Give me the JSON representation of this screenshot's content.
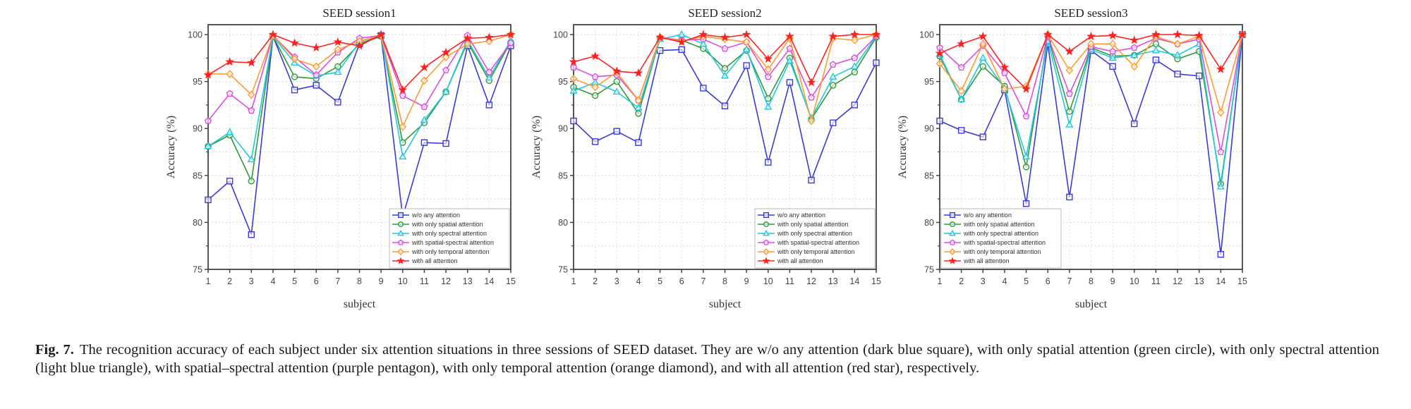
{
  "figure": {
    "label": "Fig. 7.",
    "caption": "The recognition accuracy of each subject under six attention situations in three sessions of SEED dataset. They are w/o any attention (dark blue square), with only spatial attention (green circle), with only spectral attention (light blue triangle), with spatial–spectral attention (purple pentagon), with only temporal attention (orange diamond), and with all attention (red star), respectively."
  },
  "series_styles": [
    {
      "name": "w/o any attention",
      "color": "#3a3ad6",
      "marker": "square"
    },
    {
      "name": "with only spatial attention",
      "color": "#2e9a3a",
      "marker": "circle"
    },
    {
      "name": "with only spectral attention",
      "color": "#1fc8e0",
      "marker": "triangle"
    },
    {
      "name": "with spatial-spectral attention",
      "color": "#d94ee0",
      "marker": "pentagon"
    },
    {
      "name": "with only temporal attention",
      "color": "#ff9a2e",
      "marker": "diamond"
    },
    {
      "name": "with all attention",
      "color": "#ff2020",
      "marker": "star"
    }
  ],
  "chart_data": [
    {
      "type": "line",
      "title": "SEED session1",
      "xlabel": "subject",
      "ylabel": "Accuracy (%)",
      "x": [
        1,
        2,
        3,
        4,
        5,
        6,
        7,
        8,
        9,
        10,
        11,
        12,
        13,
        14,
        15
      ],
      "xticks": [
        "1",
        "2",
        "3",
        "4",
        "5",
        "6",
        "7",
        "8",
        "9",
        "10",
        "11",
        "12",
        "13",
        "14",
        "15"
      ],
      "ylim": [
        75,
        100
      ],
      "yticks": [
        "75",
        "80",
        "85",
        "90",
        "95",
        "100"
      ],
      "grid": true,
      "legend_position": "bottom-right",
      "series": [
        {
          "name": "w/o any attention",
          "values": [
            82.4,
            84.4,
            78.7,
            99.8,
            94.1,
            94.6,
            92.8,
            99.0,
            99.9,
            80.6,
            88.5,
            88.4,
            98.8,
            92.5,
            98.8
          ]
        },
        {
          "name": "with only spatial attention",
          "values": [
            88.1,
            89.3,
            84.4,
            99.8,
            95.5,
            95.3,
            96.6,
            99.0,
            99.8,
            88.5,
            90.6,
            93.9,
            99.2,
            95.1,
            99.2
          ]
        },
        {
          "name": "with only spectral attention",
          "values": [
            88.1,
            89.6,
            86.7,
            99.8,
            97.0,
            95.6,
            96.0,
            99.2,
            100.0,
            87.0,
            90.9,
            93.9,
            99.4,
            95.4,
            99.4
          ]
        },
        {
          "name": "with spatial-spectral attention",
          "values": [
            90.8,
            93.7,
            91.9,
            99.9,
            97.6,
            95.7,
            98.1,
            99.6,
            99.9,
            93.5,
            92.3,
            96.2,
            99.9,
            96.0,
            99.1
          ]
        },
        {
          "name": "with only temporal attention",
          "values": [
            95.8,
            95.8,
            93.6,
            99.9,
            97.4,
            96.6,
            98.4,
            99.3,
            99.9,
            90.2,
            95.1,
            97.6,
            99.0,
            99.3,
            100.0
          ]
        },
        {
          "name": "with all attention",
          "values": [
            95.7,
            97.1,
            97.0,
            100.0,
            99.1,
            98.6,
            99.2,
            98.8,
            100.0,
            94.1,
            96.5,
            98.1,
            99.6,
            99.7,
            100.0
          ]
        }
      ]
    },
    {
      "type": "line",
      "title": "SEED session2",
      "xlabel": "subject",
      "ylabel": "Accuracy (%)",
      "x": [
        1,
        2,
        3,
        4,
        5,
        6,
        7,
        8,
        9,
        10,
        11,
        12,
        13,
        14,
        15
      ],
      "xticks": [
        "1",
        "2",
        "3",
        "4",
        "5",
        "6",
        "7",
        "8",
        "9",
        "10",
        "11",
        "12",
        "13",
        "14",
        "15"
      ],
      "ylim": [
        75,
        100
      ],
      "yticks": [
        "75",
        "80",
        "85",
        "90",
        "95",
        "100"
      ],
      "grid": true,
      "legend_position": "bottom-right",
      "series": [
        {
          "name": "w/o any attention",
          "values": [
            90.8,
            88.6,
            89.7,
            88.5,
            98.3,
            98.4,
            94.3,
            92.4,
            96.7,
            86.4,
            94.9,
            84.5,
            90.6,
            92.5,
            97.0
          ]
        },
        {
          "name": "with only spatial attention",
          "values": [
            94.4,
            93.5,
            95.0,
            91.6,
            99.6,
            99.4,
            98.5,
            96.4,
            98.3,
            93.2,
            97.5,
            91.0,
            94.6,
            96.0,
            99.7
          ]
        },
        {
          "name": "with only spectral attention",
          "values": [
            94.0,
            94.9,
            93.9,
            92.2,
            99.5,
            100.0,
            99.0,
            95.6,
            98.4,
            92.3,
            97.2,
            91.1,
            95.5,
            96.6,
            99.8
          ]
        },
        {
          "name": "with spatial-spectral attention",
          "values": [
            96.5,
            95.5,
            95.7,
            93.0,
            99.7,
            99.4,
            99.5,
            98.5,
            99.2,
            95.5,
            98.5,
            93.3,
            96.8,
            97.5,
            99.8
          ]
        },
        {
          "name": "with only temporal attention",
          "values": [
            95.3,
            94.4,
            96.0,
            93.0,
            99.7,
            99.3,
            99.8,
            99.5,
            99.2,
            96.3,
            99.6,
            90.8,
            99.6,
            99.4,
            100.0
          ]
        },
        {
          "name": "with all attention",
          "values": [
            97.1,
            97.7,
            96.1,
            95.9,
            99.7,
            99.2,
            100.0,
            99.7,
            100.0,
            97.4,
            99.8,
            94.9,
            99.8,
            100.0,
            100.0
          ]
        }
      ]
    },
    {
      "type": "line",
      "title": "SEED session3",
      "xlabel": "subject",
      "ylabel": "Accuracy (%)",
      "x": [
        1,
        2,
        3,
        4,
        5,
        6,
        7,
        8,
        9,
        10,
        11,
        12,
        13,
        14,
        15
      ],
      "xticks": [
        "1",
        "2",
        "3",
        "4",
        "5",
        "6",
        "7",
        "8",
        "9",
        "10",
        "11",
        "12",
        "13",
        "14",
        "15"
      ],
      "ylim": [
        75,
        100
      ],
      "yticks": [
        "75",
        "80",
        "85",
        "90",
        "95",
        "100"
      ],
      "grid": true,
      "legend_position": "bottom-left",
      "series": [
        {
          "name": "w/o any attention",
          "values": [
            90.8,
            89.8,
            89.1,
            94.1,
            82.0,
            99.0,
            82.7,
            98.3,
            96.6,
            90.5,
            97.3,
            95.8,
            95.6,
            76.6,
            100.0
          ]
        },
        {
          "name": "with only spatial attention",
          "values": [
            97.7,
            93.1,
            96.6,
            94.5,
            85.9,
            99.8,
            91.8,
            98.6,
            97.7,
            97.8,
            99.0,
            97.4,
            98.2,
            84.1,
            100.0
          ]
        },
        {
          "name": "with only spectral attention",
          "values": [
            97.9,
            93.1,
            97.5,
            94.3,
            87.0,
            99.3,
            90.4,
            98.4,
            97.5,
            97.8,
            98.3,
            97.8,
            99.0,
            83.8,
            100.0
          ]
        },
        {
          "name": "with spatial-spectral attention",
          "values": [
            98.6,
            96.5,
            98.8,
            95.9,
            91.3,
            99.8,
            93.7,
            98.7,
            98.2,
            98.6,
            99.6,
            99.0,
            99.5,
            87.5,
            100.0
          ]
        },
        {
          "name": "with only temporal attention",
          "values": [
            96.9,
            94.0,
            99.0,
            94.2,
            94.5,
            100.0,
            96.2,
            99.0,
            99.0,
            96.6,
            99.8,
            99.0,
            99.8,
            91.7,
            100.0
          ]
        },
        {
          "name": "with all attention",
          "values": [
            98.0,
            99.0,
            99.8,
            96.5,
            94.2,
            100.0,
            98.2,
            99.8,
            99.9,
            99.4,
            100.0,
            100.0,
            99.9,
            96.3,
            100.0
          ]
        }
      ]
    }
  ]
}
